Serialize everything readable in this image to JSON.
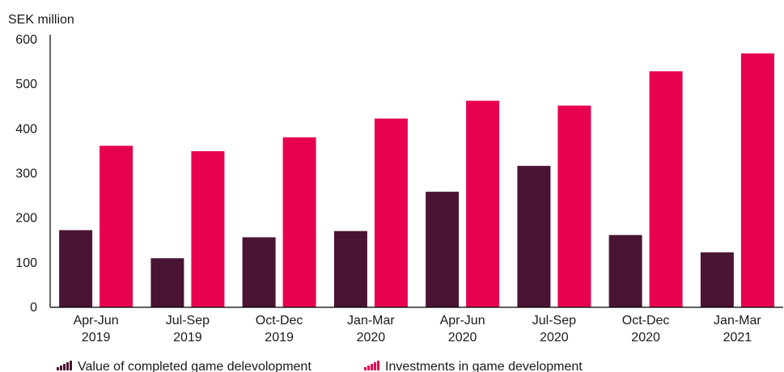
{
  "chart_data": {
    "type": "bar",
    "unit_label": "SEK million",
    "categories": [
      [
        "Apr-Jun",
        "2019"
      ],
      [
        "Jul-Sep",
        "2019"
      ],
      [
        "Oct-Dec",
        "2019"
      ],
      [
        "Jan-Mar",
        "2020"
      ],
      [
        "Apr-Jun",
        "2020"
      ],
      [
        "Jul-Sep",
        "2020"
      ],
      [
        "Oct-Dec",
        "2020"
      ],
      [
        "Jan-Mar",
        "2021"
      ]
    ],
    "series": [
      {
        "name": "Value of completed game delevolopment",
        "color": "#4a1434",
        "values": [
          173,
          110,
          157,
          171,
          259,
          317,
          162,
          123
        ]
      },
      {
        "name": "Investments in game development",
        "color": "#e6004f",
        "values": [
          362,
          350,
          381,
          423,
          463,
          452,
          529,
          569
        ]
      }
    ],
    "ylim": [
      0,
      600
    ],
    "yticks": [
      0,
      100,
      200,
      300,
      400,
      500,
      600
    ],
    "grid": false,
    "legend_position": "bottom-left"
  }
}
